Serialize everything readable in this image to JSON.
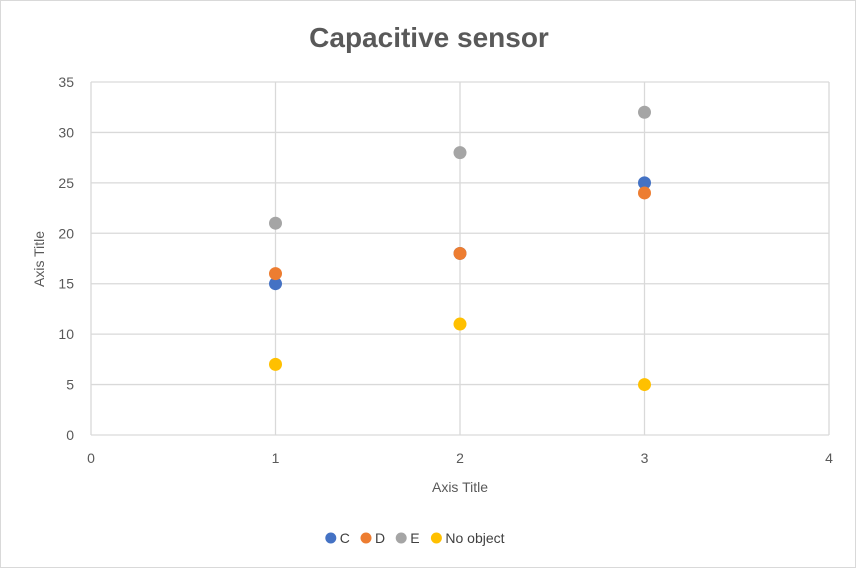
{
  "chart_data": {
    "type": "scatter",
    "title": "Capacitive sensor",
    "xlabel": "Axis Title",
    "ylabel": "Axis Title",
    "xlim": [
      0,
      4
    ],
    "ylim": [
      0,
      35
    ],
    "xticks": [
      0,
      1,
      2,
      3,
      4
    ],
    "yticks": [
      0,
      5,
      10,
      15,
      20,
      25,
      30,
      35
    ],
    "grid": true,
    "legend_position": "bottom",
    "series": [
      {
        "name": "C",
        "color": "#4472C4",
        "points": [
          [
            1,
            15
          ],
          [
            2,
            18
          ],
          [
            3,
            25
          ]
        ]
      },
      {
        "name": "D",
        "color": "#ED7D31",
        "points": [
          [
            1,
            16
          ],
          [
            2,
            18
          ],
          [
            3,
            24
          ]
        ]
      },
      {
        "name": "E",
        "color": "#A5A5A5",
        "points": [
          [
            1,
            21
          ],
          [
            2,
            28
          ],
          [
            3,
            32
          ]
        ]
      },
      {
        "name": "No object",
        "color": "#FFC000",
        "points": [
          [
            1,
            7
          ],
          [
            2,
            11
          ],
          [
            3,
            5
          ]
        ]
      }
    ]
  }
}
